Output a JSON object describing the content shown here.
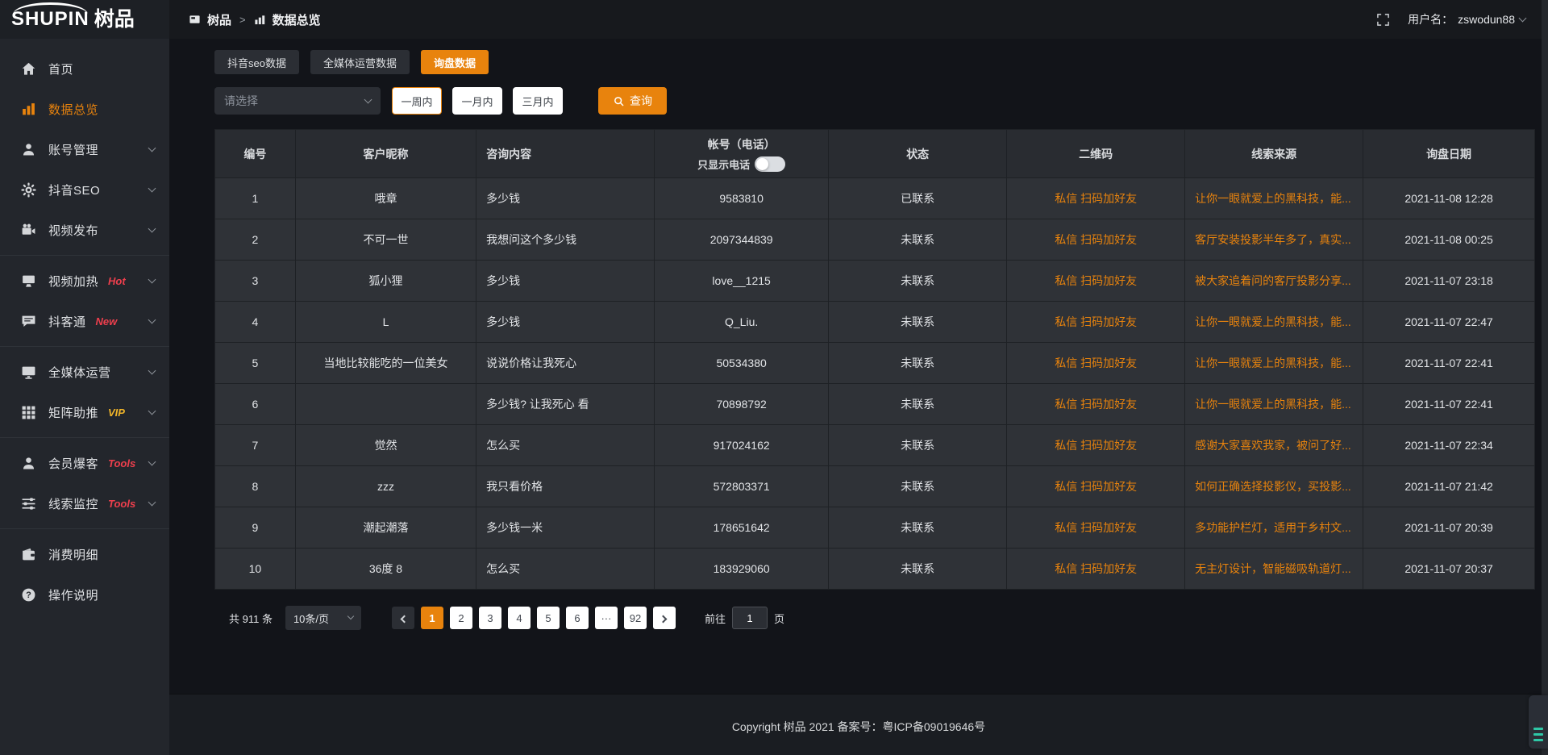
{
  "brand": {
    "logo_text_en": "SHUPIN",
    "logo_text_cn": "树品"
  },
  "topbar": {
    "breadcrumb": {
      "root": "树品",
      "separator": ">",
      "current": "数据总览"
    },
    "user_label": "用户名：",
    "username": "zswodun88"
  },
  "sidebar": {
    "items": [
      {
        "key": "home",
        "label": "首页",
        "icon": "home-icon"
      },
      {
        "key": "data-overview",
        "label": "数据总览",
        "icon": "bar-chart-icon",
        "active": true
      },
      {
        "key": "account-management",
        "label": "账号管理",
        "icon": "user-icon",
        "chevron": true
      },
      {
        "key": "douyin-seo",
        "label": "抖音SEO",
        "icon": "gear-icon",
        "chevron": true
      },
      {
        "key": "video-publish",
        "label": "视频发布",
        "icon": "video-camera-icon",
        "chevron": true
      },
      {
        "divider": true
      },
      {
        "key": "video-heating",
        "label": "视频加热",
        "icon": "screen-icon",
        "badge": "Hot",
        "badge_style": "red",
        "chevron": true
      },
      {
        "key": "doukertong",
        "label": "抖客通",
        "icon": "chat-icon",
        "badge": "New",
        "badge_style": "red",
        "chevron": true
      },
      {
        "divider": true
      },
      {
        "key": "media-operation",
        "label": "全媒体运营",
        "icon": "monitor-icon",
        "chevron": true
      },
      {
        "key": "matrix-boost",
        "label": "矩阵助推",
        "icon": "grid-icon",
        "badge": "VIP",
        "badge_style": "gold",
        "chevron": true
      },
      {
        "divider": true
      },
      {
        "key": "member-baoke",
        "label": "会员爆客",
        "icon": "member-icon",
        "badge": "Tools",
        "badge_style": "red",
        "chevron": true
      },
      {
        "key": "clue-monitor",
        "label": "线索监控",
        "icon": "sliders-icon",
        "badge": "Tools",
        "badge_style": "red",
        "chevron": true
      },
      {
        "divider": true
      },
      {
        "key": "consume-detail",
        "label": "消费明细",
        "icon": "wallet-icon"
      },
      {
        "key": "operation-guide",
        "label": "操作说明",
        "icon": "help-icon"
      }
    ]
  },
  "tabs": [
    {
      "key": "douyin-seo-data",
      "label": "抖音seo数据"
    },
    {
      "key": "media-operation-data",
      "label": "全媒体运营数据"
    },
    {
      "key": "inquiry-data",
      "label": "询盘数据",
      "active": true
    }
  ],
  "filters": {
    "select_placeholder": "请选择",
    "range_options": [
      {
        "key": "one-week",
        "label": "一周内",
        "active": true
      },
      {
        "key": "one-month",
        "label": "一月内"
      },
      {
        "key": "three-months",
        "label": "三月内"
      }
    ],
    "search_label": "查询"
  },
  "table": {
    "headers": {
      "id": "编号",
      "nickname": "客户昵称",
      "content": "咨询内容",
      "account_line1": "帐号（电话）",
      "phone_toggle_label": "只显示电话",
      "status": "状态",
      "qrcode": "二维码",
      "source": "线索来源",
      "date": "询盘日期"
    },
    "qr_actions": [
      "私信",
      "扫码加好友"
    ],
    "rows": [
      {
        "id": "1",
        "nickname": "哦章",
        "content": "多少钱",
        "account": "9583810",
        "status": "已联系",
        "contacted": true,
        "source": "让你一眼就爱上的黑科技，能...",
        "date": "2021-11-08 12:28"
      },
      {
        "id": "2",
        "nickname": "不可一世",
        "content": "我想问这个多少钱",
        "account": "2097344839",
        "status": "未联系",
        "contacted": false,
        "source": "客厅安装投影半年多了，真实...",
        "date": "2021-11-08 00:25"
      },
      {
        "id": "3",
        "nickname": "狐小狸",
        "content": "多少钱",
        "account": "love__1215",
        "status": "未联系",
        "contacted": false,
        "source": "被大家追着问的客厅投影分享...",
        "date": "2021-11-07 23:18"
      },
      {
        "id": "4",
        "nickname": "L",
        "content": "多少钱",
        "account": "Q_Liu.",
        "status": "未联系",
        "contacted": false,
        "source": "让你一眼就爱上的黑科技，能...",
        "date": "2021-11-07 22:47"
      },
      {
        "id": "5",
        "nickname": "当地比较能吃的一位美女",
        "content": "说说价格让我死心",
        "account": "50534380",
        "status": "未联系",
        "contacted": false,
        "source": "让你一眼就爱上的黑科技，能...",
        "date": "2021-11-07 22:41"
      },
      {
        "id": "6",
        "nickname": "",
        "content": "多少钱? 让我死心 看",
        "account": "70898792",
        "status": "未联系",
        "contacted": false,
        "source": "让你一眼就爱上的黑科技，能...",
        "date": "2021-11-07 22:41"
      },
      {
        "id": "7",
        "nickname": "觉然",
        "content": "怎么买",
        "account": "917024162",
        "status": "未联系",
        "contacted": false,
        "source": "感谢大家喜欢我家，被问了好...",
        "date": "2021-11-07 22:34"
      },
      {
        "id": "8",
        "nickname": "zzz",
        "content": "我只看价格",
        "account": "572803371",
        "status": "未联系",
        "contacted": false,
        "source": "如何正确选择投影仪，买投影...",
        "date": "2021-11-07 21:42"
      },
      {
        "id": "9",
        "nickname": "潮起潮落",
        "content": "多少钱一米",
        "account": "178651642",
        "status": "未联系",
        "contacted": false,
        "source": "多功能护栏灯，适用于乡村文...",
        "date": "2021-11-07 20:39"
      },
      {
        "id": "10",
        "nickname": "36度 8",
        "content": "怎么买",
        "account": "183929060",
        "status": "未联系",
        "contacted": false,
        "source": "无主灯设计，智能磁吸轨道灯...",
        "date": "2021-11-07 20:37"
      }
    ]
  },
  "pagination": {
    "total_label": "共 911 条",
    "page_size": "10条/页",
    "pages": [
      "1",
      "2",
      "3",
      "4",
      "5",
      "6",
      "···",
      "92"
    ],
    "active_page": "1",
    "goto_label": "前往",
    "goto_value": "1",
    "goto_unit": "页"
  },
  "footer": {
    "copyright": "Copyright 树品 2021 备案号：粤ICP备09019646号"
  },
  "colors": {
    "accent": "#e8830d",
    "badge_red": "#ee3f4d",
    "badge_gold": "#f0b429",
    "status_uncontacted": "#e8830d"
  }
}
